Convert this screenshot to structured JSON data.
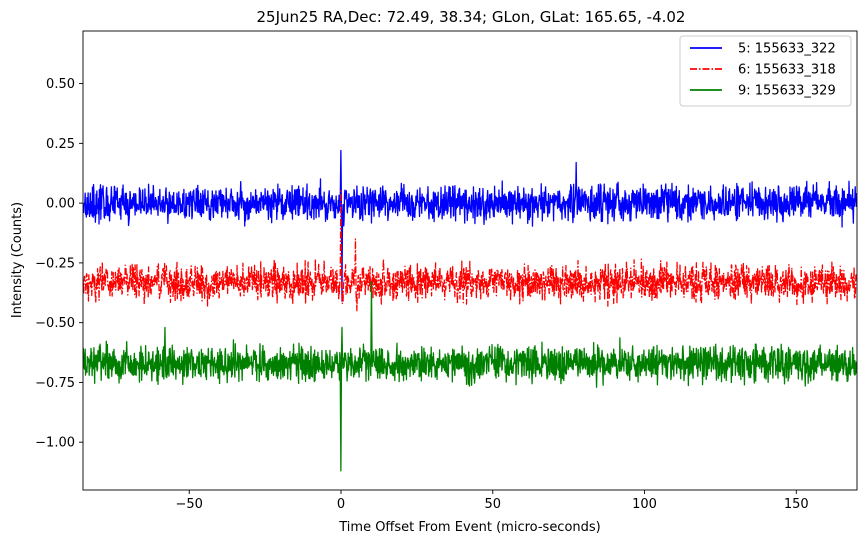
{
  "chart_data": {
    "type": "line",
    "title": "25Jun25 RA,Dec:   72.49,  38.34; GLon, GLat:  165.65,  -4.02",
    "xlabel": "Time Offset From Event (micro-seconds)",
    "ylabel": "Intensity (Counts)",
    "xlim": [
      -85,
      170
    ],
    "ylim": [
      -1.2,
      0.72
    ],
    "xticks": [
      -50,
      0,
      50,
      100,
      150
    ],
    "xtick_labels": [
      "−50",
      "0",
      "50",
      "100",
      "150"
    ],
    "yticks": [
      0.5,
      0.25,
      0.0,
      -0.25,
      -0.5,
      -0.75,
      -1.0
    ],
    "ytick_labels": [
      "0.50",
      "0.25",
      "0.00",
      "−0.25",
      "−0.50",
      "−0.75",
      "−1.00"
    ],
    "legend_position": "top-right",
    "series": [
      {
        "name": "5: 155633_322",
        "color": "#0000ff",
        "style": "solid",
        "baseline": 0.0,
        "noise_amplitude": 0.045,
        "spikes": [
          {
            "x": 0.0,
            "y": 0.22
          },
          {
            "x": 0.3,
            "y": -0.41
          },
          {
            "x": 77.5,
            "y": 0.17
          },
          {
            "x": -33.0,
            "y": 0.09
          }
        ]
      },
      {
        "name": "6: 155633_318",
        "color": "#ff0000",
        "style": "dashdot",
        "baseline": -0.33,
        "noise_amplitude": 0.045,
        "spikes": [
          {
            "x": 0.0,
            "y": 0.05
          },
          {
            "x": 0.4,
            "y": -0.42
          },
          {
            "x": 4.8,
            "y": -0.15
          },
          {
            "x": 5.2,
            "y": -0.45
          },
          {
            "x": -44.0,
            "y": -0.43
          }
        ]
      },
      {
        "name": "9: 155633_329",
        "color": "#008000",
        "style": "solid",
        "baseline": -0.67,
        "noise_amplitude": 0.045,
        "spikes": [
          {
            "x": 0.0,
            "y": -1.12
          },
          {
            "x": 0.3,
            "y": -0.52
          },
          {
            "x": 10.0,
            "y": -0.33
          },
          {
            "x": -58.0,
            "y": -0.52
          }
        ]
      }
    ]
  }
}
